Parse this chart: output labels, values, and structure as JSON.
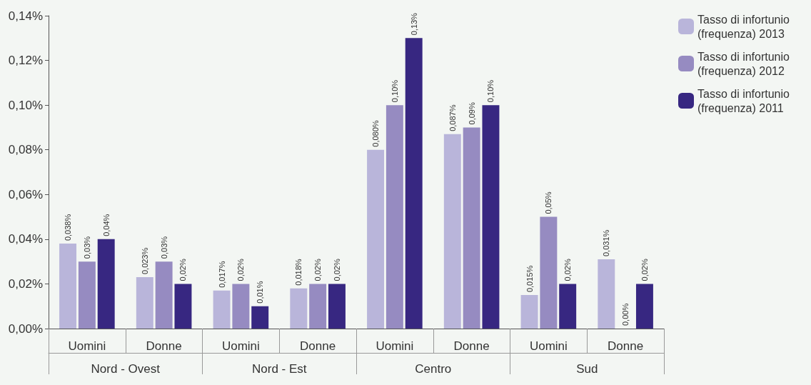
{
  "chart_data": {
    "type": "bar",
    "categories": [
      "Uomini",
      "Donne",
      "Uomini",
      "Donne",
      "Uomini",
      "Donne",
      "Uomini",
      "Donne"
    ],
    "annotations": [
      "Nord - Ovest",
      "Nord - Est",
      "Centro",
      "Sud"
    ],
    "series": [
      {
        "name": "Tasso di infortunio (frequenza) 2013",
        "color": "#b9b5da",
        "values": [
          0.038,
          0.023,
          0.017,
          0.018,
          0.08,
          0.087,
          0.015,
          0.031
        ],
        "value_labels": [
          "0,038%",
          "0,023%",
          "0,017%",
          "0,018%",
          "0,080%",
          "0,087%",
          "0,015%",
          "0,031%"
        ]
      },
      {
        "name": "Tasso di infortunio (frequenza) 2012",
        "color": "#968bc1",
        "values": [
          0.03,
          0.03,
          0.02,
          0.02,
          0.1,
          0.09,
          0.05,
          0.0
        ],
        "value_labels": [
          "0,03%",
          "0,03%",
          "0,02%",
          "0,02%",
          "0,10%",
          "0,09%",
          "0,05%",
          "0,00%"
        ]
      },
      {
        "name": "Tasso di infortunio (frequenza) 2011",
        "color": "#372781",
        "values": [
          0.04,
          0.02,
          0.01,
          0.02,
          0.13,
          0.1,
          0.02,
          0.02
        ],
        "value_labels": [
          "0,04%",
          "0,02%",
          "0,01%",
          "0,02%",
          "0,13%",
          "0,10%",
          "0,02%",
          "0,02%"
        ]
      }
    ],
    "ylim": [
      0,
      0.14
    ],
    "yticks": [
      {
        "value": 0,
        "label": "0,00%"
      },
      {
        "value": 0.02,
        "label": "0,02%"
      },
      {
        "value": 0.04,
        "label": "0,04%"
      },
      {
        "value": 0.06,
        "label": "0,06%"
      },
      {
        "value": 0.08,
        "label": "0,08%"
      },
      {
        "value": 0.1,
        "label": "0,10%"
      },
      {
        "value": 0.12,
        "label": "0,12%"
      },
      {
        "value": 0.14,
        "label": "0,14%"
      }
    ],
    "grid": false,
    "legend": "top right"
  }
}
